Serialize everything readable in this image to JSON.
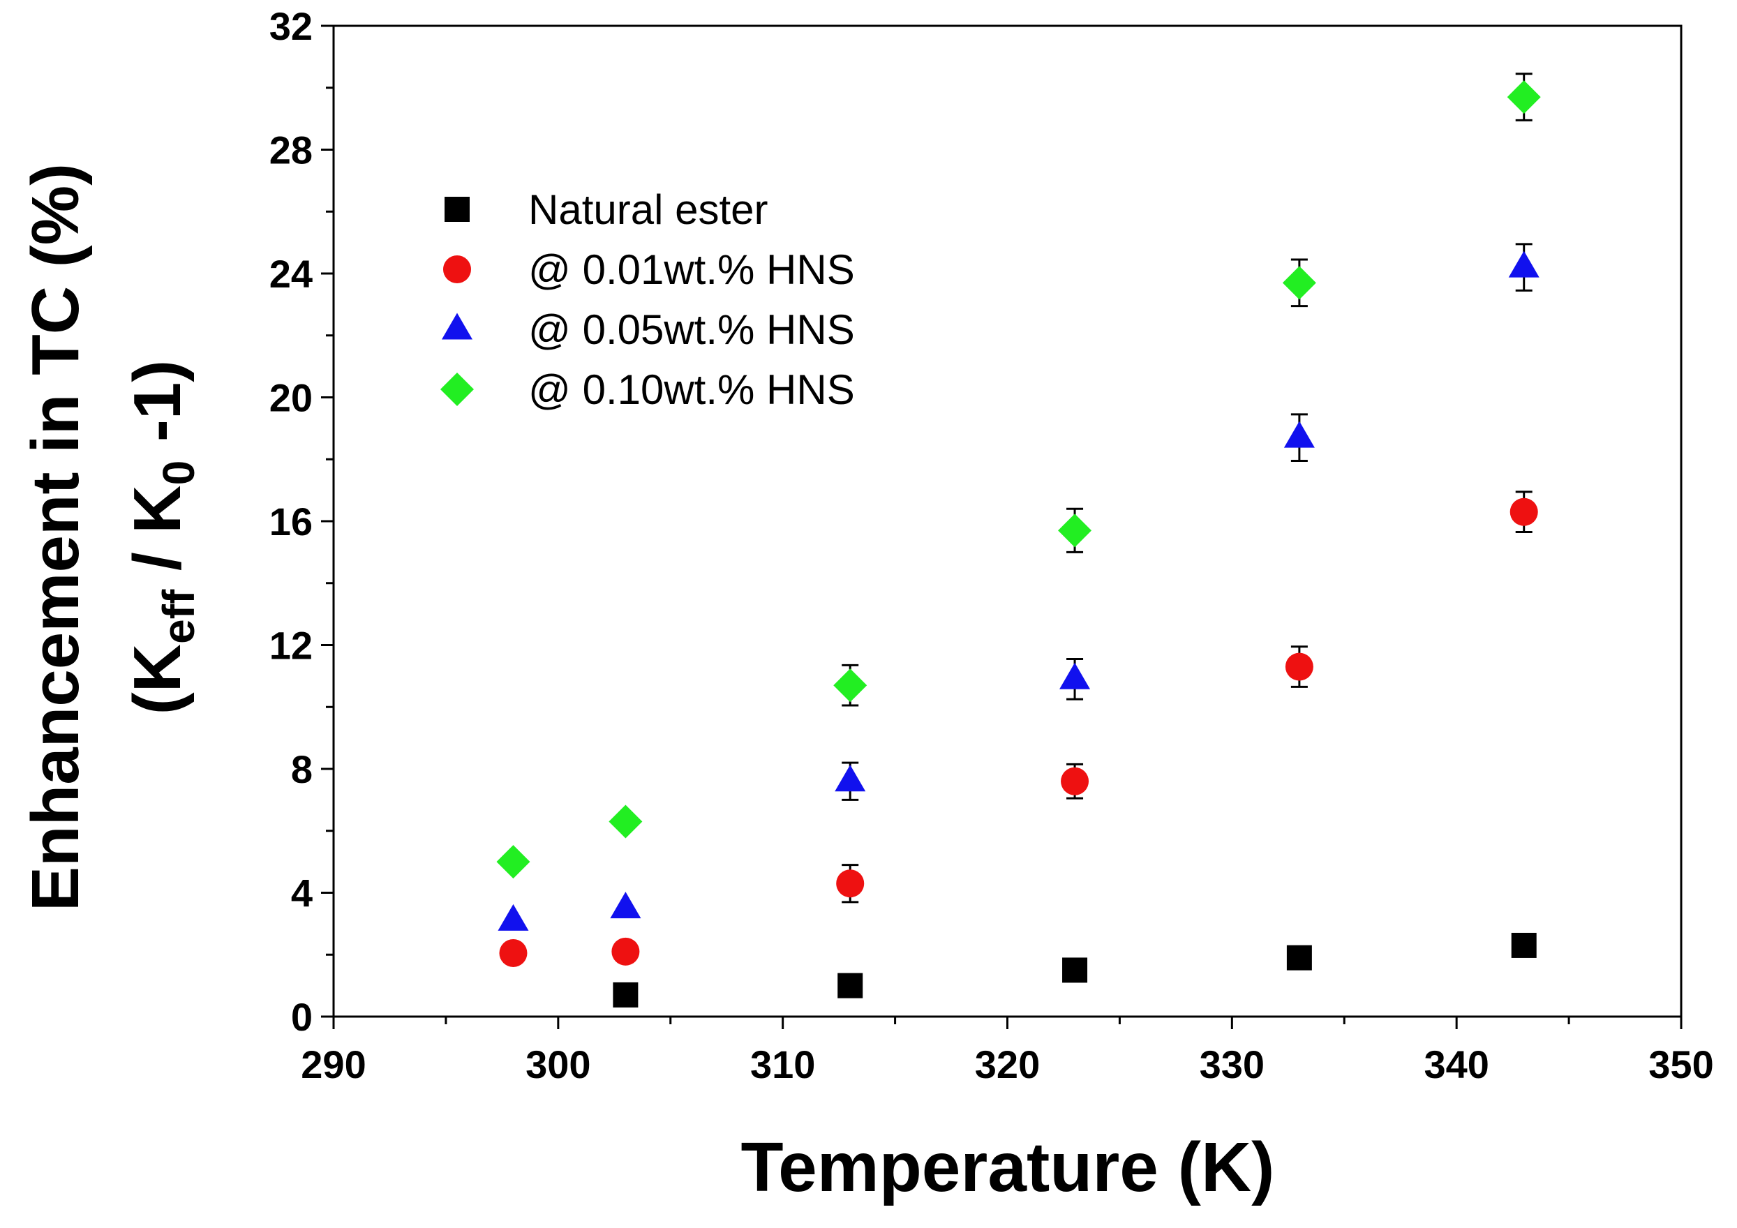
{
  "chart_data": {
    "type": "scatter",
    "title": "",
    "xlabel": "Temperature (K)",
    "ylabel": {
      "line1": "Enhancement in TC (%)",
      "line2_open": "(K",
      "line2_sub1": "eff",
      "line2_mid": " / K",
      "line2_sub2": "0",
      "line2_close": " -1)"
    },
    "xlim": [
      290,
      350
    ],
    "ylim": [
      0,
      32
    ],
    "x_ticks": [
      290,
      300,
      310,
      320,
      330,
      340,
      350
    ],
    "y_ticks": [
      0,
      4,
      8,
      12,
      16,
      20,
      24,
      28,
      32
    ],
    "x_tick_labels": [
      "290",
      "300",
      "310",
      "320",
      "330",
      "340",
      "350"
    ],
    "y_tick_labels": [
      "0",
      "4",
      "8",
      "12",
      "16",
      "20",
      "24",
      "28",
      "32"
    ],
    "legend_position": "top-left",
    "series": [
      {
        "name": "Natural ester",
        "marker": "square",
        "color": "#000000",
        "x": [
          303,
          313,
          323,
          333,
          343
        ],
        "y": [
          0.7,
          1.0,
          1.5,
          1.9,
          2.3
        ],
        "err": [
          0,
          0,
          0,
          0,
          0
        ]
      },
      {
        "name": "@ 0.01wt.% HNS",
        "marker": "circle",
        "color": "#ee1111",
        "x": [
          298,
          303,
          313,
          323,
          333,
          343
        ],
        "y": [
          2.05,
          2.1,
          4.3,
          7.6,
          11.3,
          16.3
        ],
        "err": [
          0,
          0,
          0.6,
          0.55,
          0.65,
          0.65
        ]
      },
      {
        "name": "@ 0.05wt.% HNS",
        "marker": "triangle",
        "color": "#1111ee",
        "x": [
          298,
          303,
          313,
          323,
          333,
          343
        ],
        "y": [
          3.1,
          3.5,
          7.6,
          10.9,
          18.7,
          24.2
        ],
        "err": [
          0,
          0,
          0.6,
          0.65,
          0.75,
          0.75
        ]
      },
      {
        "name": "@ 0.10wt.% HNS",
        "marker": "diamond",
        "color": "#22ee22",
        "x": [
          298,
          303,
          313,
          323,
          333,
          343
        ],
        "y": [
          5.0,
          6.3,
          10.7,
          15.7,
          23.7,
          29.7
        ],
        "err": [
          0,
          0,
          0.65,
          0.7,
          0.75,
          0.75
        ]
      }
    ]
  }
}
